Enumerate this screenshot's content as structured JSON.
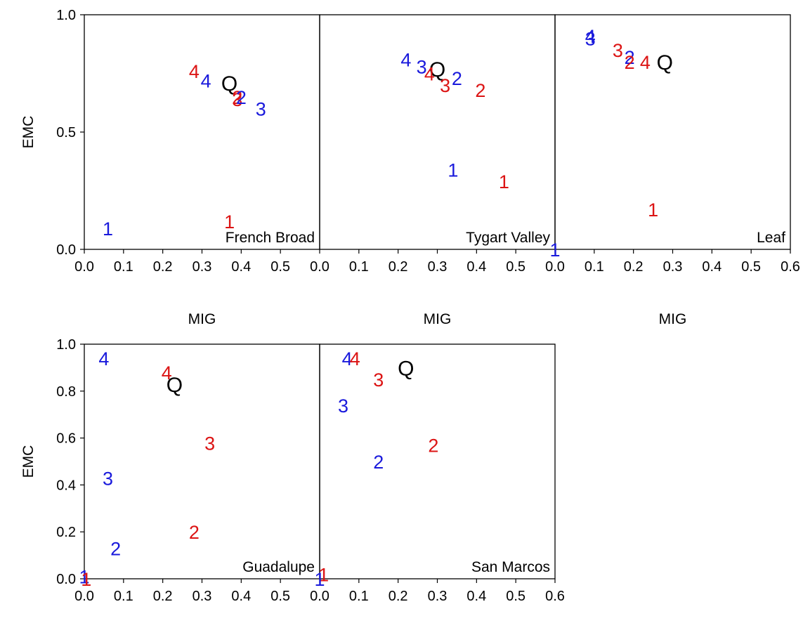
{
  "colors": {
    "blue": "#1a1adc",
    "red": "#dc1414",
    "black": "#000000"
  },
  "chart_data": {
    "type": "scatter",
    "xlabel": "MIG",
    "ylabel": "EMC",
    "marker_note_labels": [
      "1",
      "2",
      "3",
      "4",
      "Q"
    ],
    "panels": [
      {
        "title": "French Broad",
        "xlim": [
          0,
          0.6
        ],
        "ylim": [
          0,
          1
        ],
        "xticks": [
          "0.0",
          "0.1",
          "0.2",
          "0.3",
          "0.4",
          "0.5"
        ],
        "yticks": [
          "0.0",
          "0.5",
          "1.0"
        ],
        "show_xlabel": true,
        "show_ylabel": true,
        "points": [
          {
            "label": "1",
            "color": "blue",
            "x": 0.06,
            "y": 0.09
          },
          {
            "label": "1",
            "color": "red",
            "x": 0.37,
            "y": 0.12
          },
          {
            "label": "4",
            "color": "red",
            "x": 0.28,
            "y": 0.76
          },
          {
            "label": "4",
            "color": "blue",
            "x": 0.31,
            "y": 0.72
          },
          {
            "label": "Q",
            "color": "black",
            "x": 0.37,
            "y": 0.71
          },
          {
            "label": "3",
            "color": "red",
            "x": 0.39,
            "y": 0.64
          },
          {
            "label": "2",
            "color": "red",
            "x": 0.39,
            "y": 0.65
          },
          {
            "label": "2",
            "color": "blue",
            "x": 0.4,
            "y": 0.65
          },
          {
            "label": "3",
            "color": "blue",
            "x": 0.45,
            "y": 0.6
          }
        ]
      },
      {
        "title": "Tygart Valley",
        "xlim": [
          0,
          0.6
        ],
        "ylim": [
          0,
          1
        ],
        "xticks": [
          "0.0",
          "0.1",
          "0.2",
          "0.3",
          "0.4",
          "0.5"
        ],
        "yticks": [],
        "show_xlabel": true,
        "show_ylabel": false,
        "points": [
          {
            "label": "4",
            "color": "blue",
            "x": 0.22,
            "y": 0.81
          },
          {
            "label": "3",
            "color": "blue",
            "x": 0.26,
            "y": 0.78
          },
          {
            "label": "Q",
            "color": "black",
            "x": 0.3,
            "y": 0.77
          },
          {
            "label": "4",
            "color": "red",
            "x": 0.28,
            "y": 0.75
          },
          {
            "label": "3",
            "color": "red",
            "x": 0.32,
            "y": 0.7
          },
          {
            "label": "2",
            "color": "blue",
            "x": 0.35,
            "y": 0.73
          },
          {
            "label": "2",
            "color": "red",
            "x": 0.41,
            "y": 0.68
          },
          {
            "label": "1",
            "color": "blue",
            "x": 0.34,
            "y": 0.34
          },
          {
            "label": "1",
            "color": "red",
            "x": 0.47,
            "y": 0.29
          }
        ]
      },
      {
        "title": "Leaf",
        "xlim": [
          0,
          0.6
        ],
        "ylim": [
          0,
          1
        ],
        "xticks": [
          "0.0",
          "0.1",
          "0.2",
          "0.3",
          "0.4",
          "0.5",
          "0.6"
        ],
        "yticks": [],
        "show_xlabel": true,
        "show_ylabel": false,
        "points": [
          {
            "label": "4",
            "color": "blue",
            "x": 0.09,
            "y": 0.91
          },
          {
            "label": "3",
            "color": "blue",
            "x": 0.09,
            "y": 0.9
          },
          {
            "label": "3",
            "color": "red",
            "x": 0.16,
            "y": 0.85
          },
          {
            "label": "2",
            "color": "blue",
            "x": 0.19,
            "y": 0.82
          },
          {
            "label": "2",
            "color": "red",
            "x": 0.19,
            "y": 0.8
          },
          {
            "label": "4",
            "color": "red",
            "x": 0.23,
            "y": 0.8
          },
          {
            "label": "Q",
            "color": "black",
            "x": 0.28,
            "y": 0.8
          },
          {
            "label": "1",
            "color": "red",
            "x": 0.25,
            "y": 0.17
          },
          {
            "label": "1",
            "color": "blue",
            "x": 0.0,
            "y": 0.0
          }
        ]
      },
      {
        "title": "Guadalupe",
        "xlim": [
          0,
          0.6
        ],
        "ylim": [
          0,
          1
        ],
        "xticks": [
          "0.0",
          "0.1",
          "0.2",
          "0.3",
          "0.4",
          "0.5"
        ],
        "yticks": [
          "0.0",
          "0.2",
          "0.4",
          "0.6",
          "0.8",
          "1.0"
        ],
        "show_xlabel": true,
        "show_ylabel": true,
        "points": [
          {
            "label": "4",
            "color": "blue",
            "x": 0.05,
            "y": 0.94
          },
          {
            "label": "4",
            "color": "red",
            "x": 0.21,
            "y": 0.88
          },
          {
            "label": "Q",
            "color": "black",
            "x": 0.23,
            "y": 0.83
          },
          {
            "label": "3",
            "color": "red",
            "x": 0.32,
            "y": 0.58
          },
          {
            "label": "3",
            "color": "blue",
            "x": 0.06,
            "y": 0.43
          },
          {
            "label": "2",
            "color": "red",
            "x": 0.28,
            "y": 0.2
          },
          {
            "label": "2",
            "color": "blue",
            "x": 0.08,
            "y": 0.13
          },
          {
            "label": "1",
            "color": "blue",
            "x": 0.0,
            "y": 0.01
          },
          {
            "label": "1",
            "color": "red",
            "x": 0.005,
            "y": 0.0
          }
        ]
      },
      {
        "title": "San Marcos",
        "xlim": [
          0,
          0.6
        ],
        "ylim": [
          0,
          1
        ],
        "xticks": [
          "0.0",
          "0.1",
          "0.2",
          "0.3",
          "0.4",
          "0.5",
          "0.6"
        ],
        "yticks": [],
        "show_xlabel": true,
        "show_ylabel": false,
        "points": [
          {
            "label": "4",
            "color": "blue",
            "x": 0.07,
            "y": 0.94
          },
          {
            "label": "4",
            "color": "red",
            "x": 0.09,
            "y": 0.94
          },
          {
            "label": "Q",
            "color": "black",
            "x": 0.22,
            "y": 0.9
          },
          {
            "label": "3",
            "color": "red",
            "x": 0.15,
            "y": 0.85
          },
          {
            "label": "3",
            "color": "blue",
            "x": 0.06,
            "y": 0.74
          },
          {
            "label": "2",
            "color": "red",
            "x": 0.29,
            "y": 0.57
          },
          {
            "label": "2",
            "color": "blue",
            "x": 0.15,
            "y": 0.5
          },
          {
            "label": "1",
            "color": "red",
            "x": 0.01,
            "y": 0.02
          },
          {
            "label": "1",
            "color": "blue",
            "x": 0.0,
            "y": 0.0
          }
        ]
      }
    ]
  }
}
